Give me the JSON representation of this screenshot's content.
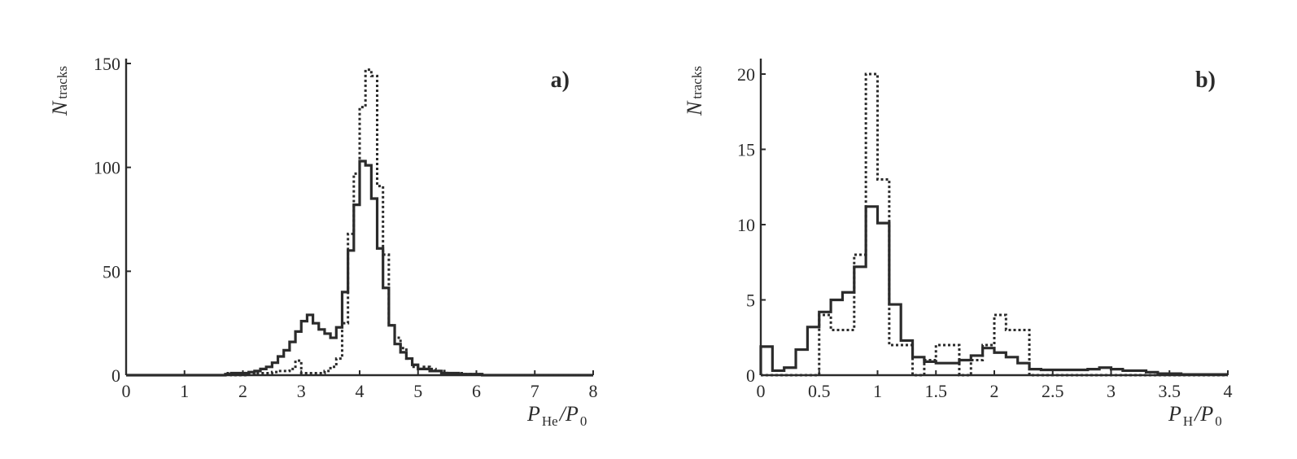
{
  "chart_data": [
    {
      "type": "histogram",
      "panel_label": "a)",
      "ylabel": {
        "main": "N",
        "sub": "tracks"
      },
      "xlabel": {
        "num_main": "P",
        "num_sub": "He",
        "den_main": "P",
        "den_sub": "0"
      },
      "xlim": [
        0,
        8
      ],
      "ylim": [
        0,
        150
      ],
      "x_ticks": [
        0,
        1,
        2,
        3,
        4,
        5,
        6,
        7,
        8
      ],
      "x_tick_labels": [
        "0",
        "1",
        "2",
        "3",
        "4",
        "5",
        "6",
        "7",
        "8"
      ],
      "y_ticks": [
        0,
        50,
        100,
        150
      ],
      "y_tick_labels": [
        "0",
        "50",
        "100",
        "150"
      ],
      "bin_width": 0.1,
      "series": [
        {
          "style": "solid",
          "bin_edges_start": 0,
          "values": [
            0,
            0,
            0,
            0,
            0,
            0,
            0,
            0,
            0,
            0,
            0,
            0,
            0,
            0,
            0,
            0,
            0,
            0.5,
            1,
            1,
            1,
            1.5,
            2,
            3,
            4,
            6,
            9,
            12,
            16,
            21,
            26,
            29,
            25,
            22,
            20,
            18,
            23,
            40,
            60,
            82,
            103,
            101,
            85,
            61,
            42,
            24,
            15,
            11,
            8,
            5,
            3,
            3,
            2,
            2,
            1,
            1,
            1,
            0.5,
            0.5,
            0.5,
            0.5,
            0,
            0,
            0,
            0,
            0,
            0,
            0,
            0,
            0,
            0,
            0,
            0,
            0,
            0,
            0,
            0,
            0,
            0,
            0
          ]
        },
        {
          "style": "dotted",
          "bin_edges_start": 0,
          "values": [
            0,
            0,
            0,
            0,
            0,
            0,
            0,
            0,
            0,
            0,
            0,
            0,
            0,
            0,
            0,
            0,
            0,
            1,
            0,
            0,
            0,
            0.5,
            1,
            1,
            1,
            1.5,
            2,
            2,
            3,
            7,
            1,
            1,
            1,
            1,
            2,
            4,
            8,
            25,
            68,
            97,
            129,
            147,
            144,
            91,
            58,
            24,
            18,
            13,
            8,
            4,
            3,
            4,
            3,
            2,
            2,
            1,
            1,
            1,
            0.5,
            0.5,
            0.5,
            0,
            0,
            0,
            0,
            0,
            0,
            0,
            0,
            0,
            0,
            0,
            0,
            0,
            0,
            0,
            0,
            0,
            0,
            0
          ]
        }
      ]
    },
    {
      "type": "histogram",
      "panel_label": "b)",
      "ylabel": {
        "main": "N",
        "sub": "tracks"
      },
      "xlabel": {
        "num_main": "P",
        "num_sub": "H",
        "den_main": "P",
        "den_sub": "0"
      },
      "xlim": [
        0,
        4
      ],
      "ylim": [
        0,
        21
      ],
      "x_ticks": [
        0,
        0.5,
        1,
        1.5,
        2,
        2.5,
        3,
        3.5,
        4
      ],
      "x_tick_labels": [
        "0",
        "0.5",
        "1",
        "1.5",
        "2",
        "2.5",
        "3",
        "3.5",
        "4"
      ],
      "y_ticks": [
        0,
        5,
        10,
        15,
        20
      ],
      "y_tick_labels": [
        "0",
        "5",
        "10",
        "15",
        "20"
      ],
      "bin_width": 0.1,
      "series": [
        {
          "style": "solid",
          "bin_edges_start": 0,
          "values": [
            1.9,
            0.3,
            0.5,
            1.7,
            3.2,
            4.2,
            5,
            5.5,
            7.2,
            11.2,
            10.1,
            4.7,
            2.3,
            1.2,
            0.9,
            0.8,
            0.8,
            1,
            1.3,
            1.8,
            1.5,
            1.2,
            0.8,
            0.4,
            0.35,
            0.35,
            0.35,
            0.35,
            0.4,
            0.5,
            0.4,
            0.3,
            0.3,
            0.2,
            0.1,
            0.1,
            0.05,
            0.05,
            0.05,
            0.05
          ]
        },
        {
          "style": "dotted",
          "bin_edges_start": 0,
          "values": [
            0,
            0,
            0,
            0,
            0,
            4,
            3,
            3,
            8,
            20,
            13,
            2,
            2,
            0,
            1,
            2,
            2,
            0,
            1,
            2,
            4,
            3,
            3,
            0,
            0,
            0,
            0,
            0,
            0,
            0,
            0,
            0,
            0,
            0,
            0,
            0,
            0,
            0,
            0,
            0
          ]
        }
      ]
    }
  ]
}
